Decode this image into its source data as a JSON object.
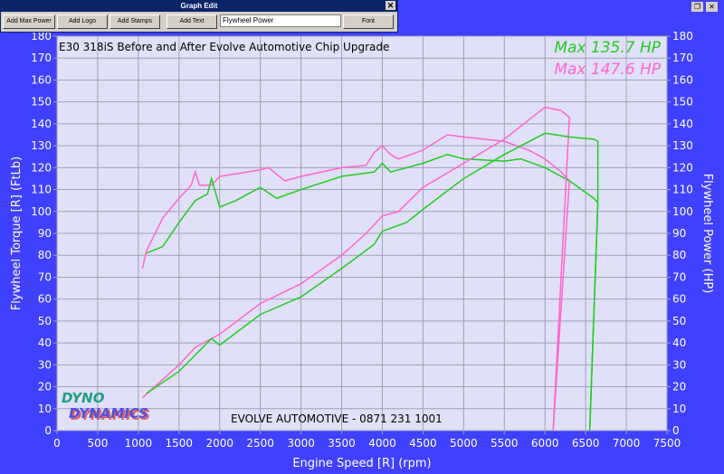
{
  "dialog": {
    "title": "Graph Edit",
    "buttons": [
      "Add Max Power",
      "Add Logo",
      "Add Stamps",
      "Add Text",
      "Font"
    ],
    "text_value": "Flywheel Power"
  },
  "logo": "DYNO DYNAMICS",
  "colors": {
    "background": "#4040ff",
    "plot": "#e0e0f8",
    "after": "#ff66cc",
    "before": "#22cc22"
  },
  "chart_data": {
    "type": "line",
    "title": "E30 318iS Before and After Evolve Automotive Chip Upgrade",
    "annotation": "EVOLVE AUTOMOTIVE - 0871 231 1001",
    "xlabel": "Engine Speed [R] (rpm)",
    "ylabel": "Flywheel Torque [R] (FtLb)",
    "y2label": "Flywheel Power (HP)",
    "xlim": [
      0,
      7500
    ],
    "ylim": [
      0,
      180
    ],
    "y2lim": [
      0,
      180
    ],
    "grid": true,
    "xticks": [
      0,
      500,
      1000,
      1500,
      2000,
      2500,
      3000,
      3500,
      4000,
      4500,
      5000,
      5500,
      6000,
      6500,
      7000,
      7500
    ],
    "yticks": [
      0,
      10,
      20,
      30,
      40,
      50,
      60,
      70,
      80,
      90,
      100,
      110,
      120,
      130,
      140,
      150,
      160,
      170,
      180
    ],
    "labels": [
      {
        "text": "Max 135.7 HP",
        "color": "#22cc22"
      },
      {
        "text": "Max 147.6 HP",
        "color": "#ff66cc"
      }
    ],
    "series": [
      {
        "color": "#ff66cc",
        "axis": "torque",
        "points": [
          [
            1050,
            74
          ],
          [
            1100,
            82
          ],
          [
            1300,
            97
          ],
          [
            1500,
            106
          ],
          [
            1650,
            112
          ],
          [
            1700,
            118
          ],
          [
            1750,
            112
          ],
          [
            1900,
            112
          ],
          [
            2000,
            116
          ],
          [
            2500,
            119
          ],
          [
            2600,
            120
          ],
          [
            2800,
            114
          ],
          [
            3000,
            116
          ],
          [
            3500,
            120
          ],
          [
            3800,
            121
          ],
          [
            3900,
            127
          ],
          [
            4000,
            130
          ],
          [
            4100,
            126
          ],
          [
            4200,
            124
          ],
          [
            4500,
            128
          ],
          [
            4800,
            135
          ],
          [
            5000,
            134
          ],
          [
            5500,
            132
          ],
          [
            5800,
            128
          ],
          [
            6000,
            124
          ],
          [
            6200,
            118
          ],
          [
            6300,
            114
          ],
          [
            6100,
            0
          ]
        ]
      },
      {
        "color": "#22cc22",
        "axis": "torque",
        "points": [
          [
            1100,
            81
          ],
          [
            1300,
            84
          ],
          [
            1500,
            95
          ],
          [
            1700,
            105
          ],
          [
            1850,
            108
          ],
          [
            1900,
            115
          ],
          [
            2000,
            102
          ],
          [
            2200,
            105
          ],
          [
            2500,
            111
          ],
          [
            2700,
            106
          ],
          [
            3000,
            110
          ],
          [
            3500,
            116
          ],
          [
            3900,
            118
          ],
          [
            4000,
            122
          ],
          [
            4100,
            118
          ],
          [
            4500,
            122
          ],
          [
            4800,
            126
          ],
          [
            5000,
            124
          ],
          [
            5500,
            123
          ],
          [
            5700,
            124
          ],
          [
            6000,
            120
          ],
          [
            6300,
            114
          ],
          [
            6600,
            106
          ],
          [
            6650,
            104
          ],
          [
            6550,
            0
          ]
        ]
      },
      {
        "color": "#ff66cc",
        "axis": "power",
        "points": [
          [
            1050,
            15
          ],
          [
            1500,
            30
          ],
          [
            1700,
            38
          ],
          [
            1900,
            42
          ],
          [
            2000,
            44
          ],
          [
            2500,
            58
          ],
          [
            3000,
            67
          ],
          [
            3500,
            80
          ],
          [
            3800,
            90
          ],
          [
            4000,
            98
          ],
          [
            4200,
            100
          ],
          [
            4500,
            111
          ],
          [
            5000,
            122
          ],
          [
            5500,
            133
          ],
          [
            6000,
            147.6
          ],
          [
            6200,
            146
          ],
          [
            6300,
            143
          ],
          [
            6100,
            0
          ]
        ]
      },
      {
        "color": "#22cc22",
        "axis": "power",
        "points": [
          [
            1100,
            17
          ],
          [
            1500,
            27
          ],
          [
            1900,
            42
          ],
          [
            2000,
            39
          ],
          [
            2500,
            53
          ],
          [
            3000,
            61
          ],
          [
            3500,
            74
          ],
          [
            3900,
            85
          ],
          [
            4000,
            91
          ],
          [
            4300,
            95
          ],
          [
            4500,
            101
          ],
          [
            5000,
            115
          ],
          [
            5500,
            126
          ],
          [
            6000,
            135.7
          ],
          [
            6300,
            134
          ],
          [
            6600,
            133
          ],
          [
            6650,
            132
          ],
          [
            6650,
            104
          ],
          [
            6550,
            0
          ]
        ]
      }
    ]
  }
}
